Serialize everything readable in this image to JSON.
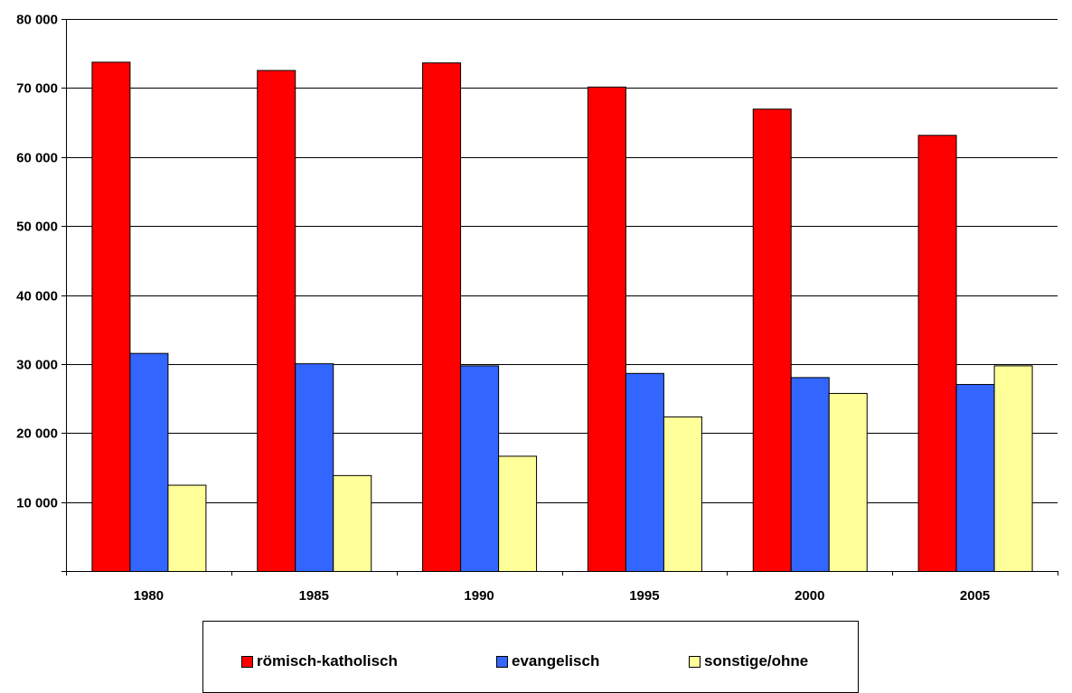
{
  "chart_data": {
    "type": "bar",
    "categories": [
      "1980",
      "1985",
      "1990",
      "1995",
      "2000",
      "2005"
    ],
    "series": [
      {
        "name": "römisch-katholisch",
        "color": "#FF0000",
        "values": [
          73800,
          72600,
          73700,
          70200,
          67000,
          63200
        ]
      },
      {
        "name": "evangelisch",
        "color": "#3366FF",
        "values": [
          31600,
          30100,
          29800,
          28700,
          28100,
          27100
        ]
      },
      {
        "name": "sonstige/ohne",
        "color": "#FFFF99",
        "values": [
          12500,
          13900,
          16700,
          22400,
          25800,
          29800
        ]
      }
    ],
    "ylim": [
      0,
      80000
    ],
    "yticks": [
      10000,
      20000,
      30000,
      40000,
      50000,
      60000,
      70000,
      80000
    ],
    "ytick_labels": [
      "10 000",
      "20 000",
      "30 000",
      "40 000",
      "50 000",
      "60 000",
      "70 000",
      "80 000"
    ],
    "grid": true,
    "legend_position": "bottom",
    "title": "",
    "xlabel": "",
    "ylabel": ""
  }
}
